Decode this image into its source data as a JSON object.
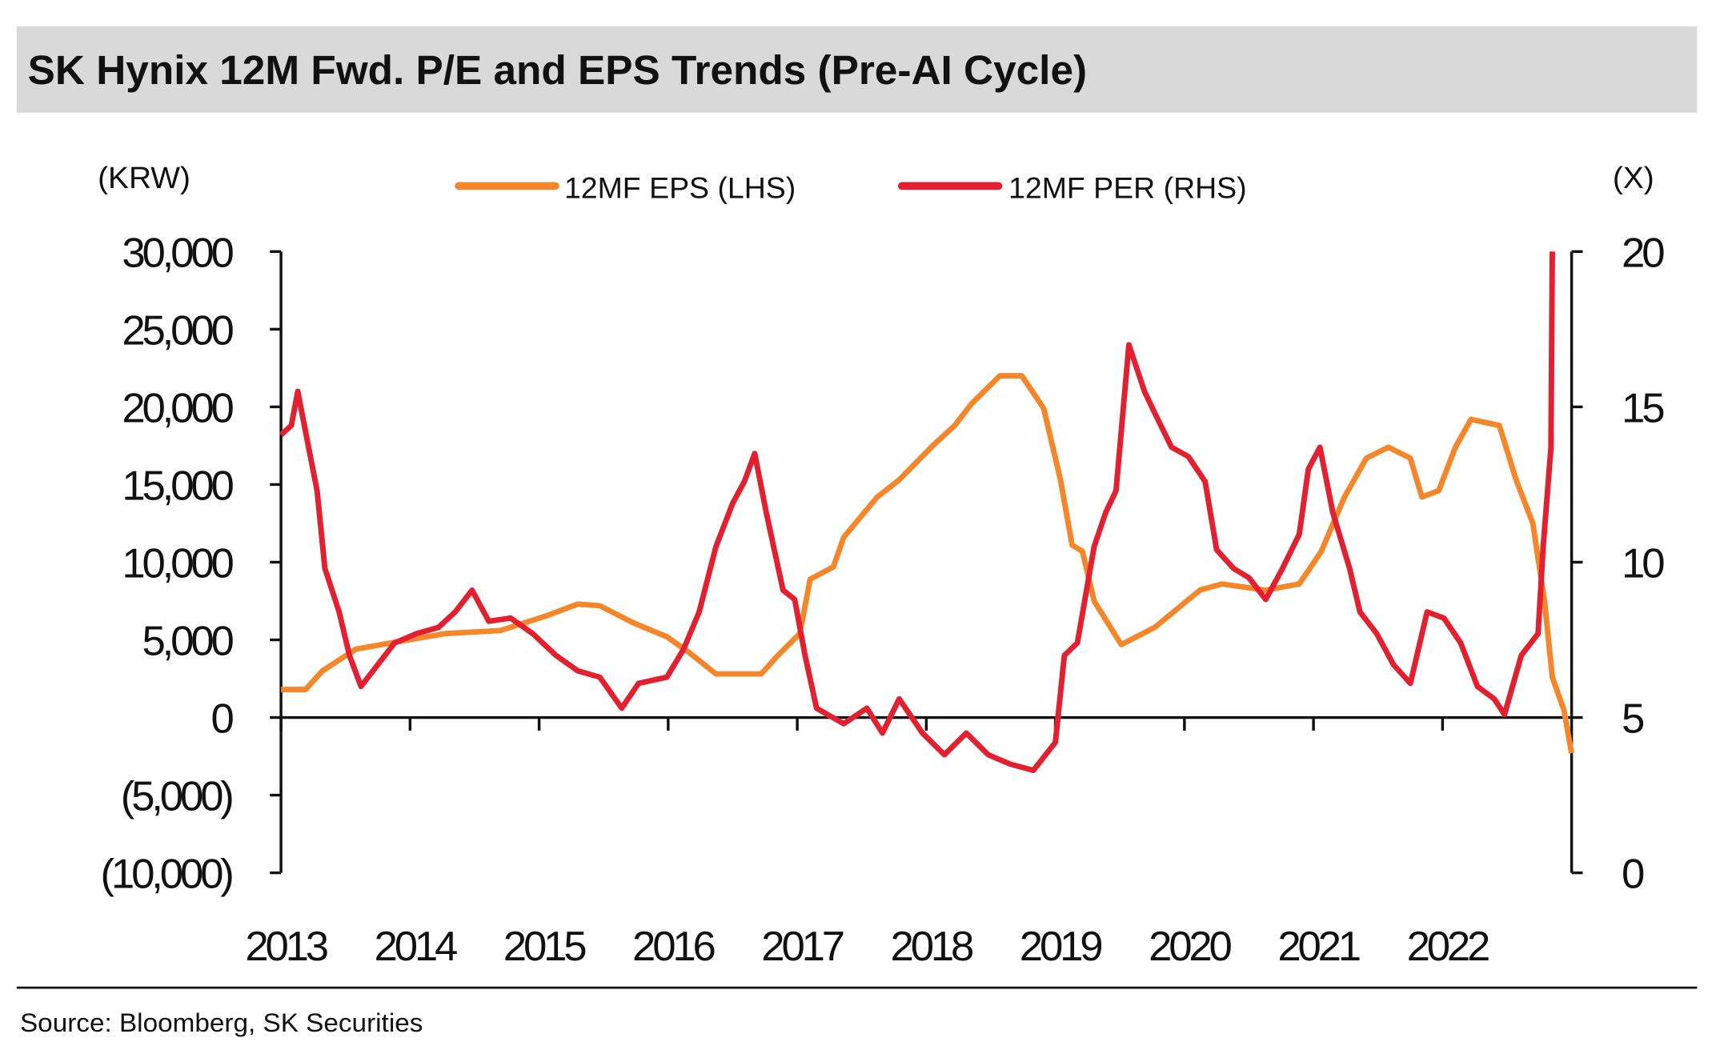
{
  "chart_data": {
    "type": "line",
    "title": "SK Hynix 12M Fwd. P/E and EPS Trends (Pre-AI Cycle)",
    "left_unit": "(KRW)",
    "right_unit": "(X)",
    "source": "Source: Bloomberg, SK Securities",
    "colors": {
      "eps": "#f5862a",
      "per": "#e3202f",
      "title_bg": "#d9d9d9"
    },
    "x_range": [
      2013,
      2023
    ],
    "x_tick_labels": [
      "2013",
      "2014",
      "2015",
      "2016",
      "2017",
      "2018",
      "2019",
      "2020",
      "2021",
      "2022"
    ],
    "y_left_range": [
      -10000,
      30000
    ],
    "y_left_tick_labels": [
      "30,000",
      "25,000",
      "20,000",
      "15,000",
      "10,000",
      "5,000",
      "0",
      "(5,000)",
      "(10,000)"
    ],
    "y_right_range": [
      0,
      20
    ],
    "y_right_tick_labels": [
      "20",
      "15",
      "10",
      "5",
      "0"
    ],
    "legend": [
      "12MF EPS (LHS)",
      "12MF PER (RHS)"
    ],
    "series": [
      {
        "name": "12MF EPS (LHS)",
        "axis": "left",
        "x": [
          2013.0,
          2013.19,
          2013.32,
          2013.58,
          2013.92,
          2014.27,
          2014.7,
          2015.04,
          2015.3,
          2015.47,
          2015.73,
          2015.99,
          2016.16,
          2016.37,
          2016.72,
          2016.85,
          2017.02,
          2017.1,
          2017.28,
          2017.36,
          2017.62,
          2017.79,
          2018.05,
          2018.22,
          2018.35,
          2018.57,
          2018.74,
          2018.91,
          2019.04,
          2019.13,
          2019.21,
          2019.3,
          2019.51,
          2019.77,
          2020.12,
          2020.29,
          2020.63,
          2020.89,
          2021.06,
          2021.24,
          2021.41,
          2021.58,
          2021.75,
          2021.84,
          2021.97,
          2022.1,
          2022.22,
          2022.44,
          2022.57,
          2022.7,
          2022.79,
          2022.85,
          2022.94,
          2023.0
        ],
        "y": [
          1800,
          1800,
          3000,
          4400,
          4900,
          5400,
          5600,
          6500,
          7300,
          7200,
          6100,
          5200,
          4200,
          2800,
          2800,
          4000,
          5400,
          8900,
          9700,
          11600,
          14200,
          15300,
          17500,
          18800,
          20200,
          22000,
          22000,
          19900,
          15300,
          11100,
          10700,
          7500,
          4700,
          5800,
          8200,
          8600,
          8200,
          8600,
          10700,
          14200,
          16700,
          17400,
          16700,
          14200,
          14600,
          17400,
          19200,
          18800,
          15300,
          12500,
          7500,
          2600,
          500,
          -2300
        ]
      },
      {
        "name": "12MF PER (RHS)",
        "axis": "right",
        "x": [
          2013.0,
          2013.08,
          2013.13,
          2013.19,
          2013.28,
          2013.34,
          2013.45,
          2013.53,
          2013.62,
          2013.75,
          2013.88,
          2014.05,
          2014.22,
          2014.35,
          2014.48,
          2014.61,
          2014.78,
          2014.95,
          2015.13,
          2015.3,
          2015.47,
          2015.64,
          2015.77,
          2015.99,
          2016.12,
          2016.24,
          2016.37,
          2016.5,
          2016.59,
          2016.67,
          2016.76,
          2016.89,
          2016.98,
          2017.06,
          2017.15,
          2017.36,
          2017.54,
          2017.66,
          2017.79,
          2017.97,
          2018.14,
          2018.31,
          2018.48,
          2018.65,
          2018.83,
          2019.0,
          2019.07,
          2019.17,
          2019.3,
          2019.39,
          2019.47,
          2019.57,
          2019.69,
          2019.77,
          2019.9,
          2020.03,
          2020.16,
          2020.25,
          2020.38,
          2020.5,
          2020.63,
          2020.76,
          2020.89,
          2020.96,
          2021.05,
          2021.15,
          2021.28,
          2021.36,
          2021.49,
          2021.62,
          2021.75,
          2021.88,
          2022.01,
          2022.14,
          2022.27,
          2022.4,
          2022.48,
          2022.61,
          2022.74,
          2022.78,
          2022.84,
          2022.85
        ],
        "y": [
          14.1,
          14.4,
          15.5,
          14.2,
          12.3,
          9.8,
          8.4,
          7.0,
          6.0,
          6.7,
          7.4,
          7.7,
          7.9,
          8.4,
          9.1,
          8.1,
          8.2,
          7.7,
          7.0,
          6.5,
          6.3,
          5.3,
          6.1,
          6.3,
          7.2,
          8.4,
          10.5,
          11.9,
          12.6,
          13.5,
          11.6,
          9.1,
          8.8,
          7.0,
          5.3,
          4.8,
          5.3,
          4.5,
          5.6,
          4.5,
          3.8,
          4.5,
          3.8,
          3.5,
          3.3,
          4.2,
          7.0,
          7.4,
          10.5,
          11.6,
          12.3,
          17.0,
          15.5,
          14.8,
          13.7,
          13.4,
          12.6,
          10.4,
          9.8,
          9.5,
          8.8,
          9.8,
          10.9,
          13.0,
          13.7,
          11.6,
          9.8,
          8.4,
          7.7,
          6.7,
          6.1,
          8.4,
          8.2,
          7.4,
          6.0,
          5.6,
          5.1,
          7.0,
          7.7,
          10.5,
          13.7,
          20.0
        ]
      }
    ]
  }
}
